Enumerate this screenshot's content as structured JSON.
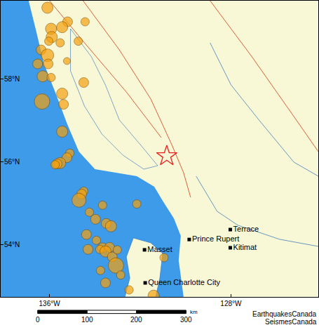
{
  "chart_data": {
    "type": "map",
    "xlim": [
      -138.15,
      -124.15
    ],
    "ylim": [
      52.73,
      59.9
    ],
    "xticks": [
      {
        "value": -136,
        "label": "136°W"
      },
      {
        "value": -128,
        "label": "128°W"
      }
    ],
    "yticks": [
      {
        "value": 54,
        "label": "54°N"
      },
      {
        "value": 56,
        "label": "56°N"
      },
      {
        "value": 58,
        "label": "58°N"
      }
    ],
    "grid": false,
    "earthquakes": {
      "color": "#f5a10f",
      "marker": "circle",
      "lon": [
        -136.09,
        -135.2,
        -134.43,
        -135.93,
        -135.44,
        -135.9,
        -136.03,
        -135.53,
        -134.73,
        -136.37,
        -136.09,
        -135.23,
        -136.52,
        -136.06,
        -136.3,
        -135.93,
        -134.49,
        -135.44,
        -136.33,
        -135.38,
        -135.44,
        -135.1,
        -135.23,
        -135.53,
        -135.66,
        -135.75,
        -134.49,
        -134.58,
        -134.7,
        -133.66,
        -134.24,
        -133.97,
        -133.5,
        -133.29,
        -134.37,
        -132.15,
        -133.93,
        -133.66,
        -133.35,
        -133.78,
        -133.53,
        -133.23,
        -133.07,
        -133.75,
        -132.86,
        -133.53,
        -132.49,
        -131.41,
        -130.95,
        -133.01,
        -134.3
      ],
      "lat": [
        59.73,
        59.39,
        59.39,
        59.22,
        59.26,
        59.02,
        58.92,
        58.88,
        58.92,
        58.71,
        58.58,
        58.44,
        58.37,
        58.37,
        58.07,
        58.04,
        57.92,
        57.65,
        57.46,
        57.39,
        56.73,
        56.21,
        56.1,
        55.97,
        55.95,
        55.93,
        55.29,
        55.22,
        55.07,
        54.95,
        54.78,
        54.61,
        54.51,
        54.44,
        54.24,
        54.98,
        54.1,
        53.92,
        53.93,
        53.88,
        53.83,
        53.7,
        53.49,
        53.37,
        53.26,
        53.07,
        52.9,
        52.76,
        53.68,
        53.87,
        53.88
      ],
      "size": [
        16,
        14,
        12,
        16,
        16,
        16,
        12,
        12,
        12,
        14,
        18,
        10,
        14,
        14,
        16,
        12,
        14,
        16,
        22,
        14,
        16,
        12,
        14,
        16,
        14,
        12,
        12,
        14,
        20,
        12,
        12,
        14,
        14,
        16,
        14,
        12,
        12,
        14,
        14,
        12,
        16,
        14,
        22,
        12,
        12,
        14,
        12,
        16,
        12,
        12,
        14
      ]
    },
    "epicentre": {
      "lon": -130.83,
      "lat": 56.14,
      "marker": "star",
      "color": "#e8201c"
    },
    "cities": [
      {
        "label": "Terrace",
        "lon": -128.03,
        "lat": 54.36
      },
      {
        "label": "Prince Rupert",
        "lon": -129.84,
        "lat": 54.12
      },
      {
        "label": "Kitimat",
        "lon": -128.03,
        "lat": 53.92
      },
      {
        "label": "Masset",
        "lon": -131.81,
        "lat": 53.87
      },
      {
        "label": "Queen Charlotte City",
        "lon": -131.78,
        "lat": 53.07
      }
    ],
    "scale_bar": {
      "ticks": [
        0,
        100,
        200,
        300
      ],
      "unit": "km"
    },
    "credits": [
      "EarthquakesCanada",
      "SeismesCanada"
    ]
  }
}
